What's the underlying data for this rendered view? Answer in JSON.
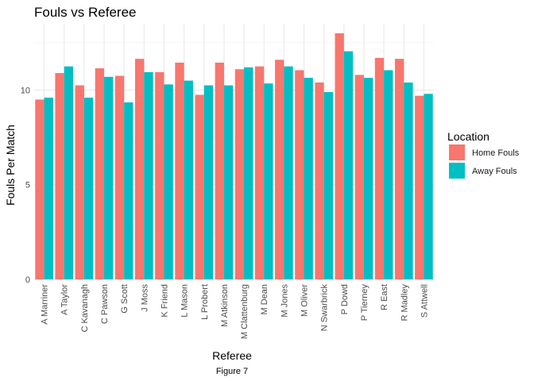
{
  "chart_data": {
    "type": "bar",
    "title": "Fouls vs Referee",
    "xlabel": "Referee",
    "ylabel": "Fouls Per Match",
    "caption": "Figure 7",
    "legend_title": "Location",
    "legend_position": "right",
    "grid": true,
    "ylim": [
      0,
      13.5
    ],
    "yticks": [
      0,
      5,
      10
    ],
    "categories": [
      "A Marriner",
      "A Taylor",
      "C Kavanagh",
      "C Pawson",
      "G Scott",
      "J Moss",
      "K Friend",
      "L Mason",
      "L Probert",
      "M Atkinson",
      "M Clattenburg",
      "M Dean",
      "M Jones",
      "M Oliver",
      "N Swarbrick",
      "P Dowd",
      "P Tierney",
      "R East",
      "R Madley",
      "S Attwell"
    ],
    "series": [
      {
        "name": "Home Fouls",
        "color": "#F8766D",
        "values": [
          9.5,
          10.9,
          10.25,
          11.15,
          10.75,
          11.65,
          10.95,
          11.45,
          9.75,
          11.45,
          11.1,
          11.25,
          11.6,
          11.05,
          10.4,
          13.0,
          10.8,
          11.7,
          11.65,
          9.7
        ]
      },
      {
        "name": "Away Fouls",
        "color": "#00BFC4",
        "values": [
          9.6,
          11.25,
          9.6,
          10.7,
          9.35,
          10.95,
          10.3,
          10.5,
          10.25,
          10.25,
          11.2,
          10.35,
          11.25,
          10.65,
          9.9,
          12.05,
          10.65,
          11.05,
          10.4,
          9.8
        ]
      }
    ]
  }
}
